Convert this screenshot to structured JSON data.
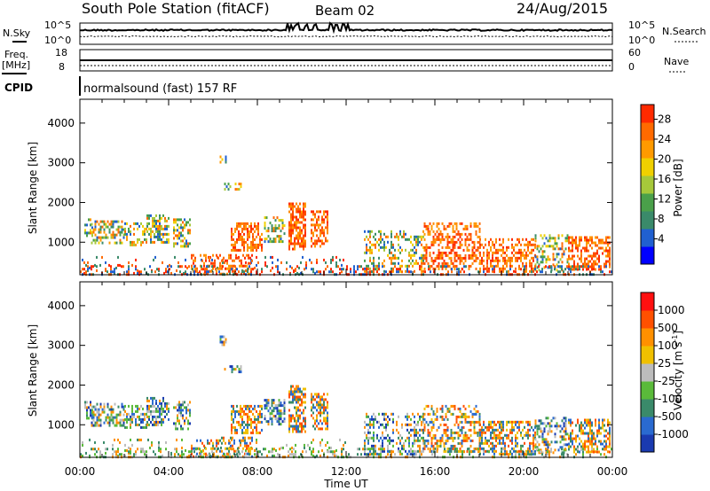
{
  "header": {
    "station": "South Pole Station (fitACF)",
    "beam": "Beam 02",
    "date": "24/Aug/2015"
  },
  "panels": {
    "nsky_label": "N.Sky",
    "nsearch_label": "N.Search",
    "noise_ticks_left": [
      "10^5",
      "10^0"
    ],
    "noise_ticks_right": [
      "10^5",
      "10^0"
    ],
    "freq_label": "Freq.",
    "freq_unit": "[MHz]",
    "freq_ticks": [
      "18",
      "8"
    ],
    "nave_label": "Nave",
    "nave_ticks": [
      "60",
      "0"
    ],
    "cpid_label": "CPID",
    "cpid_text": "normalsound (fast) 157 RF"
  },
  "chart_data": [
    {
      "type": "heatmap",
      "name": "power",
      "ylabel": "Slant Range [km]",
      "xlabel": "",
      "ylim": [
        180,
        4600
      ],
      "xlim": [
        0,
        24
      ],
      "yticks": [
        "1000",
        "2000",
        "3000",
        "4000"
      ],
      "colorbar_label": "Power [dB]",
      "colorbar_ticks": [
        "4",
        "8",
        "12",
        "16",
        "20",
        "24",
        "28"
      ],
      "colorbar_colors": [
        "#0000ff",
        "#2060d0",
        "#3a8a6a",
        "#4aa04a",
        "#a6c83a",
        "#f0d000",
        "#ff9a00",
        "#ff6a00",
        "#ff2a00"
      ]
    },
    {
      "type": "heatmap",
      "name": "velocity",
      "ylabel": "Slant Range [km]",
      "xlabel": "Time UT",
      "ylim": [
        180,
        4600
      ],
      "xlim": [
        0,
        24
      ],
      "yticks": [
        "1000",
        "2000",
        "3000",
        "4000"
      ],
      "xticks": [
        "00:00",
        "04:00",
        "08:00",
        "12:00",
        "16:00",
        "20:00",
        "00:00"
      ],
      "colorbar_label": "Velocity [m s",
      "colorbar_label_sup": "-1",
      "colorbar_label_end": "]",
      "colorbar_ticks": [
        "1000",
        "500",
        "100",
        "25",
        "-25",
        "-100",
        "-500",
        "-1000"
      ],
      "colorbar_colors": [
        "#1a3ab0",
        "#2a6ad0",
        "#3a8a6a",
        "#5aba3a",
        "#bcbcbc",
        "#f0c000",
        "#ff9000",
        "#ff5000",
        "#ff1010"
      ]
    }
  ]
}
